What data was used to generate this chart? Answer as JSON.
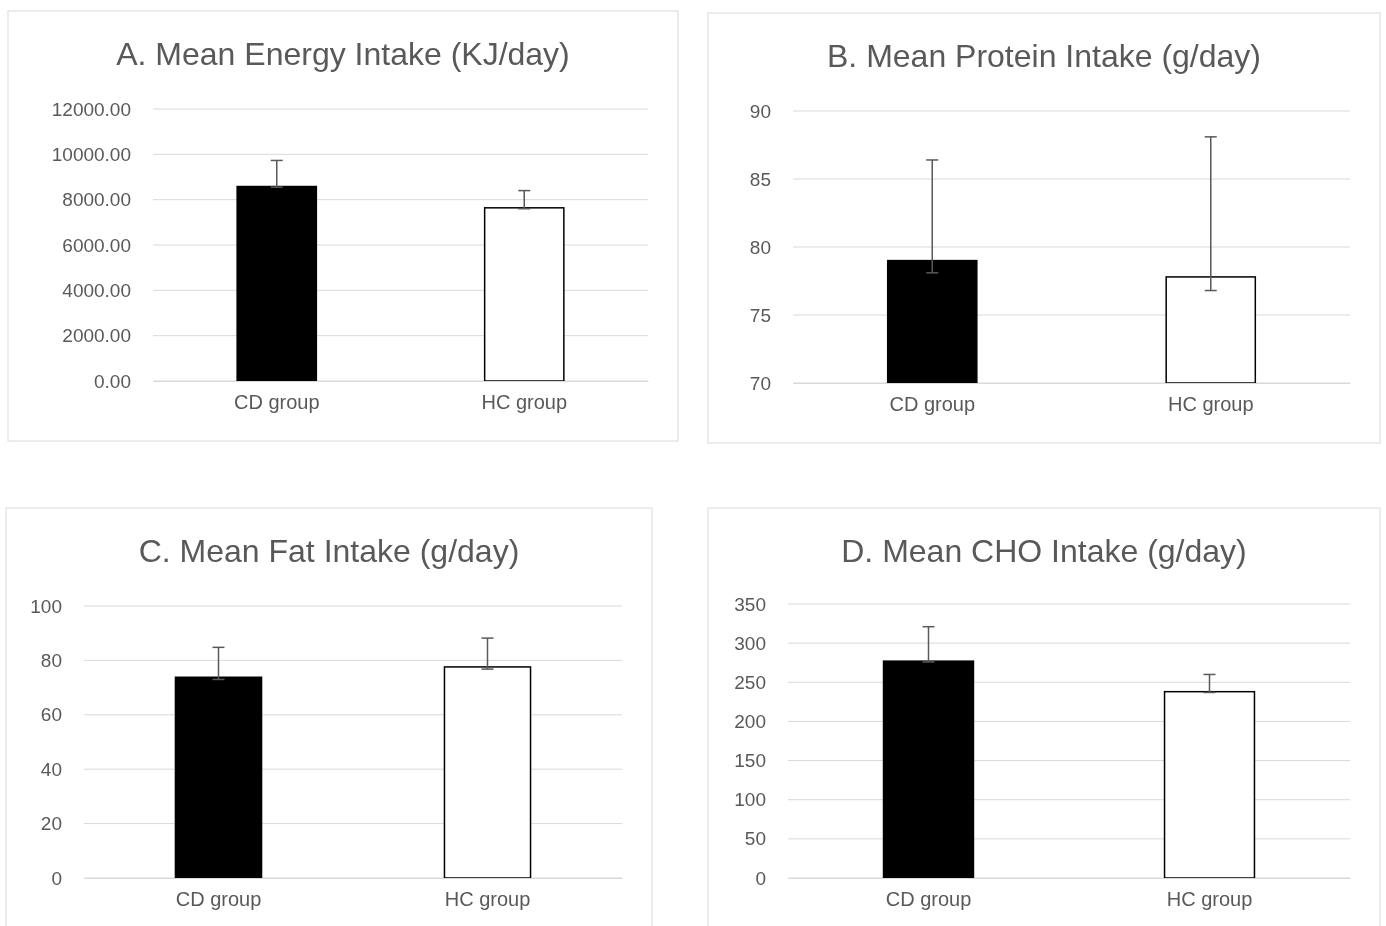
{
  "chart_data": [
    {
      "type": "bar",
      "title": "A. Mean Energy Intake (KJ/day)",
      "categories": [
        "CD group",
        "HC group"
      ],
      "values": [
        8580,
        7640
      ],
      "colors": [
        "#000000",
        "#ffffff"
      ],
      "errors": [
        [
          8550,
          9730
        ],
        [
          7600,
          8400
        ]
      ],
      "ylim": [
        0,
        12000
      ],
      "yticks": [
        {
          "value": 0,
          "label": "0.00"
        },
        {
          "value": 2000,
          "label": "2000.00"
        },
        {
          "value": 4000,
          "label": "4000.00"
        },
        {
          "value": 6000,
          "label": "6000.00"
        },
        {
          "value": 8000,
          "label": "8000.00"
        },
        {
          "value": 10000,
          "label": "10000.00"
        },
        {
          "value": 12000,
          "label": "12000.00"
        }
      ],
      "grid": "y"
    },
    {
      "type": "bar",
      "title": "B. Mean Protein Intake (g/day)",
      "categories": [
        "CD group",
        "HC group"
      ],
      "values": [
        79.0,
        77.8
      ],
      "colors": [
        "#000000",
        "#ffffff"
      ],
      "errors": [
        [
          78.1,
          86.4
        ],
        [
          76.8,
          88.1
        ]
      ],
      "ylim": [
        70,
        90
      ],
      "yticks": [
        70,
        75,
        80,
        85,
        90
      ],
      "grid": "y"
    },
    {
      "type": "bar",
      "title": "C. Mean Fat Intake (g/day)",
      "categories": [
        "CD group",
        "HC group"
      ],
      "values": [
        73.8,
        77.6
      ],
      "colors": [
        "#000000",
        "#ffffff"
      ],
      "errors": [
        [
          73.0,
          84.8
        ],
        [
          76.8,
          88.2
        ]
      ],
      "ylim": [
        0,
        100
      ],
      "yticks": [
        0,
        20,
        40,
        60,
        80,
        100
      ],
      "grid": "y"
    },
    {
      "type": "bar",
      "title": "D. Mean CHO Intake (g/day)",
      "categories": [
        "CD group",
        "HC group"
      ],
      "values": [
        277,
        238
      ],
      "colors": [
        "#000000",
        "#ffffff"
      ],
      "errors": [
        [
          276,
          321
        ],
        [
          237,
          260
        ]
      ],
      "ylim": [
        0,
        350
      ],
      "yticks": [
        0,
        50,
        100,
        150,
        200,
        250,
        300,
        350
      ],
      "grid": "y"
    }
  ]
}
